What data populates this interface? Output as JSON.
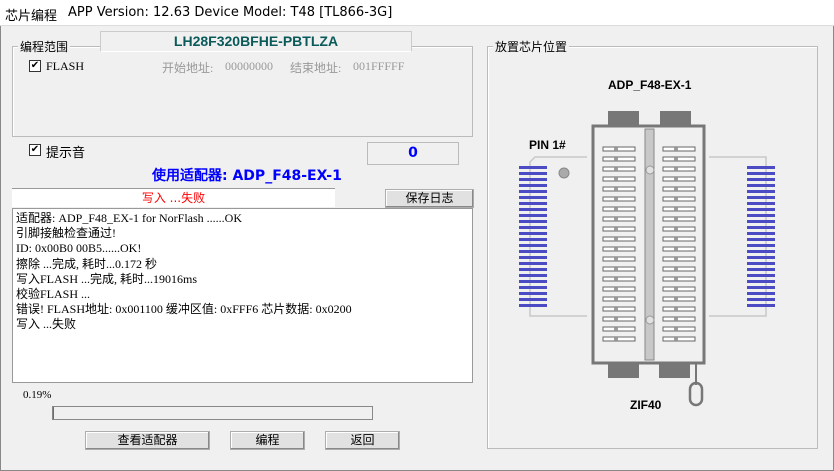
{
  "titlebar": {
    "title": "芯片编程",
    "info": "APP Version: 12.63 Device Model: T48 [TL866-3G]"
  },
  "chip_name": "LH28F320BFHE-PBTLZA",
  "range": {
    "label": "编程范围",
    "flash_label": "FLASH",
    "flash_checked": true,
    "start_label": "开始地址:",
    "start_value": "00000000",
    "end_label": "结束地址:",
    "end_value": "001FFFFF"
  },
  "beep": {
    "label": "提示音",
    "checked": true
  },
  "counter": "0",
  "adapter_line": "使用适配器: ADP_F48-EX-1",
  "status": "写入 ...失败",
  "save_log": "保存日志",
  "log": [
    "适配器:  ADP_F48_EX-1 for NorFlash  ......OK",
    "引脚接触检查通过!",
    "ID: 0x00B0 00B5......OK!",
    "擦除 ...完成, 耗时...0.172 秒",
    "写入FLASH ...完成, 耗时...19016ms",
    "校验FLASH ...",
    "错误! FLASH地址: 0x001100 缓冲区值: 0xFFF6 芯片数据: 0x0200",
    "写入 ...失败"
  ],
  "progress": {
    "text": "0.19%",
    "value": 0.19
  },
  "buttons": {
    "view_adapter": "查看适配器",
    "program": "编程",
    "back": "返回"
  },
  "placement": {
    "label": "放置芯片位置",
    "adapter": "ADP_F48-EX-1",
    "pin1": "PIN 1#",
    "socket": "ZIF40"
  },
  "colors": {
    "chip_name": "#0b5a5a",
    "adapter": "#0000ff",
    "status": "#ff0000",
    "pins": "#4b4bc3"
  }
}
